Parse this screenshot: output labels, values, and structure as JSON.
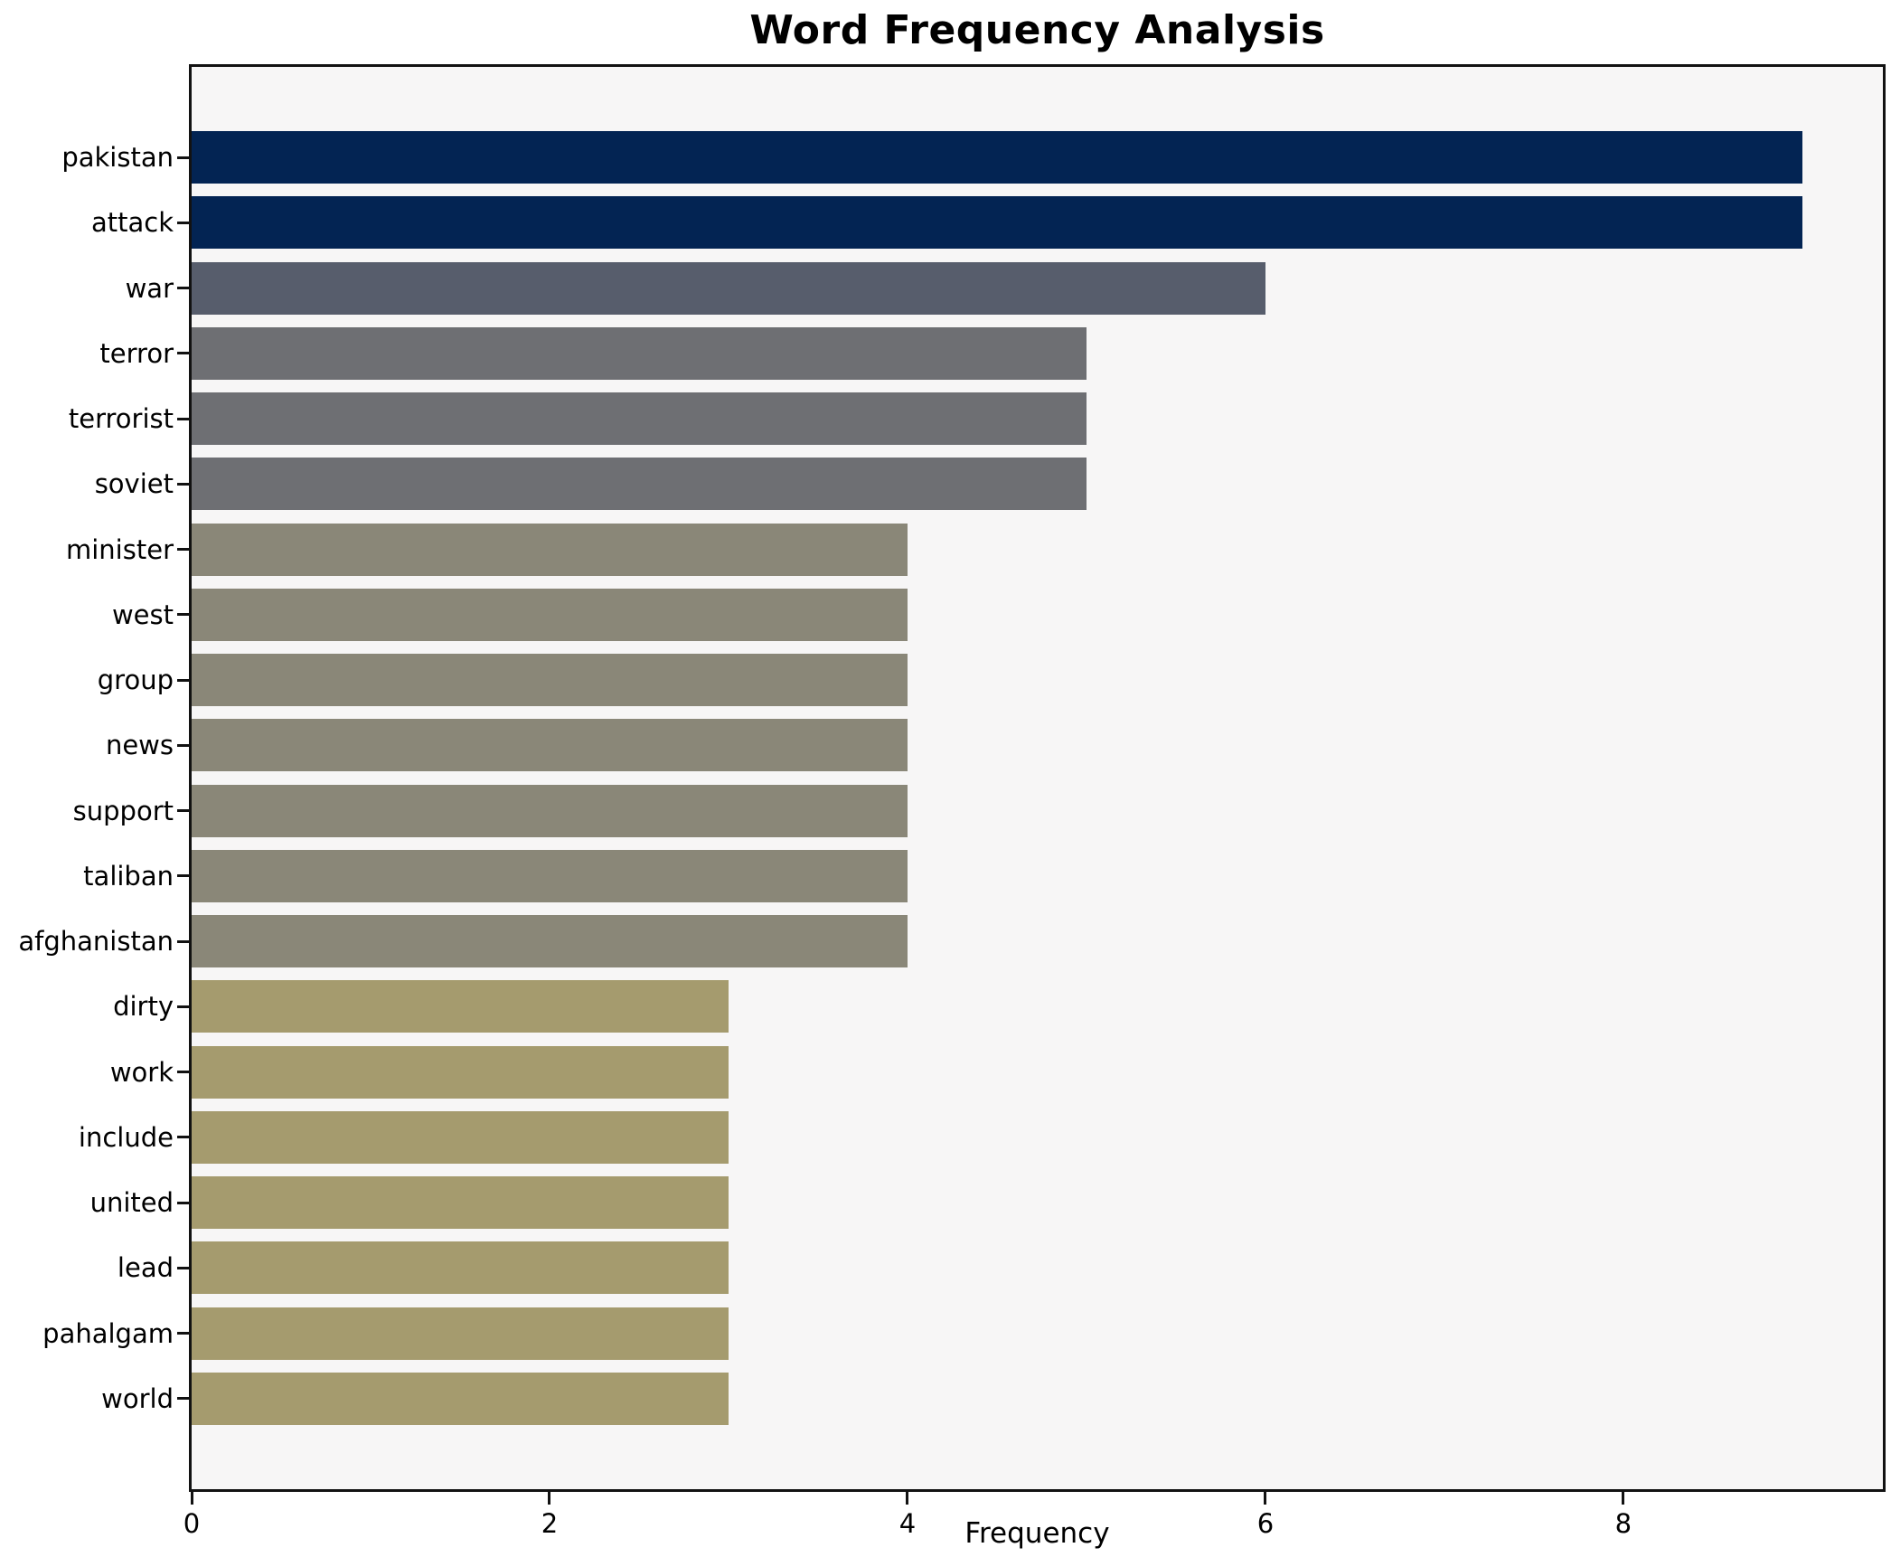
{
  "chart_data": {
    "type": "bar",
    "orientation": "horizontal",
    "title": "Word Frequency Analysis",
    "xlabel": "Frequency",
    "ylabel": "",
    "categories": [
      "pakistan",
      "attack",
      "war",
      "terror",
      "terrorist",
      "soviet",
      "minister",
      "west",
      "group",
      "news",
      "support",
      "taliban",
      "afghanistan",
      "dirty",
      "work",
      "include",
      "united",
      "lead",
      "pahalgam",
      "world"
    ],
    "values": [
      9,
      9,
      6,
      5,
      5,
      5,
      4,
      4,
      4,
      4,
      4,
      4,
      4,
      3,
      3,
      3,
      3,
      3,
      3,
      3
    ],
    "bar_colors": [
      "#032453",
      "#032453",
      "#575d6c",
      "#6e6f73",
      "#6e6f73",
      "#6e6f73",
      "#8a8778",
      "#8a8778",
      "#8a8778",
      "#8a8778",
      "#8a8778",
      "#8a8778",
      "#8a8778",
      "#a59b6e",
      "#a59b6e",
      "#a59b6e",
      "#a59b6e",
      "#a59b6e",
      "#a59b6e",
      "#a59b6e"
    ],
    "x_ticks": [
      0,
      2,
      4,
      6,
      8
    ],
    "xlim": [
      0,
      9.45
    ],
    "grid": "off",
    "legend": "none",
    "plot_background": "#f7f6f6",
    "figure_background": "#ffffff",
    "spine_color": "#121212",
    "text_color": "#000000"
  }
}
